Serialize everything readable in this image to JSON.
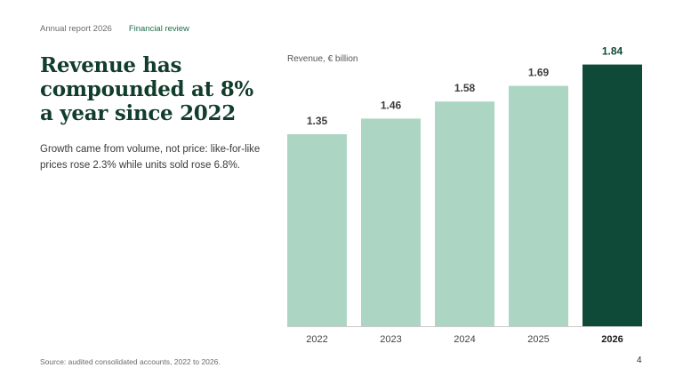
{
  "header": {
    "report": "Annual report 2026",
    "section": "Financial review"
  },
  "headline": "Revenue has compounded at 8% a year since 2022",
  "subtitle": "Growth came from volume, not price: like-for-like prices rose 2.3% while units sold rose 6.8%.",
  "source": "Source: audited consolidated accounts, 2022 to 2026.",
  "page_number": "4",
  "colors": {
    "bar": "#acd6c3",
    "highlight": "#0e4a37",
    "baseline": "#c9c9c9"
  },
  "chart_data": {
    "type": "bar",
    "ylabel": "Revenue, € billion",
    "categories": [
      "2022",
      "2023",
      "2024",
      "2025",
      "2026"
    ],
    "values": [
      1.35,
      1.46,
      1.58,
      1.69,
      1.84
    ],
    "value_labels": [
      "1.35",
      "1.46",
      "1.58",
      "1.69",
      "1.84"
    ],
    "highlight": "2026",
    "ylim": [
      0,
      2
    ],
    "grid": false
  }
}
